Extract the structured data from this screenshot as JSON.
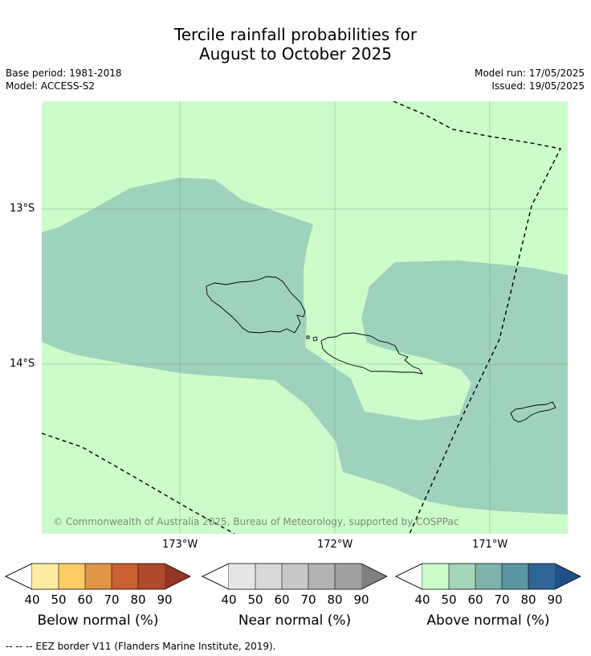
{
  "title_line1": "Tercile rainfall probabilities for",
  "title_line2": "August to October 2025",
  "meta": {
    "base_period": "Base period: 1981-2018",
    "model": "Model: ACCESS-S2",
    "model_run": "Model run: 17/05/2025",
    "issued": "Issued: 19/05/2025"
  },
  "map": {
    "copyright": "© Commonwealth of Australia 2025, Bureau of Meteorology, supported by COSPPac",
    "lat_labels": [
      "13°S",
      "14°S"
    ],
    "lon_labels": [
      "173°W",
      "172°W",
      "171°W"
    ],
    "background_color": "#ccfcc9",
    "region_color": "#9fd2bc",
    "region_meaning": "Above normal 50-60%",
    "background_meaning": "Above normal 40-50%"
  },
  "colorbars": [
    {
      "label": "Below normal (%)",
      "ticks": [
        "40",
        "50",
        "60",
        "70",
        "80",
        "90"
      ],
      "colors": [
        "#ffffff",
        "#feeca1",
        "#fdcc65",
        "#e09447",
        "#cc6031",
        "#b04a2c",
        "#943623"
      ]
    },
    {
      "label": "Near normal (%)",
      "ticks": [
        "40",
        "50",
        "60",
        "70",
        "80",
        "90"
      ],
      "colors": [
        "#ffffff",
        "#e6e6e6",
        "#d9d9d9",
        "#c8c8c8",
        "#b3b3b3",
        "#a0a0a0",
        "#808080"
      ]
    },
    {
      "label": "Above normal (%)",
      "ticks": [
        "40",
        "50",
        "60",
        "70",
        "80",
        "90"
      ],
      "colors": [
        "#ffffff",
        "#ccfcc9",
        "#a3d5b9",
        "#7fb3aa",
        "#5a95a2",
        "#306595",
        "#1f4f86"
      ]
    }
  ],
  "footnote": "-- -- -- EEZ border V11 (Flanders Marine Institute, 2019)."
}
